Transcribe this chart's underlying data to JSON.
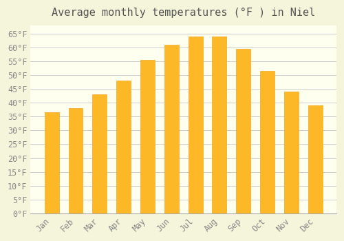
{
  "title": "Average monthly temperatures (°F ) in Niel",
  "months": [
    "Jan",
    "Feb",
    "Mar",
    "Apr",
    "May",
    "Jun",
    "Jul",
    "Aug",
    "Sep",
    "Oct",
    "Nov",
    "Dec"
  ],
  "values": [
    36.5,
    38.0,
    43.0,
    48.0,
    55.5,
    61.0,
    64.0,
    64.0,
    59.5,
    51.5,
    44.0,
    39.0
  ],
  "bar_color_face": "#FDB827",
  "bar_color_edge": "#F5A623",
  "background_color": "#F5F5DC",
  "plot_bg_color": "#FFFFF0",
  "grid_color": "#CCCCCC",
  "ylim": [
    0,
    68
  ],
  "yticks": [
    0,
    5,
    10,
    15,
    20,
    25,
    30,
    35,
    40,
    45,
    50,
    55,
    60,
    65
  ],
  "title_fontsize": 11,
  "tick_fontsize": 8.5,
  "title_color": "#555555",
  "tick_color": "#888888",
  "font_family": "monospace"
}
